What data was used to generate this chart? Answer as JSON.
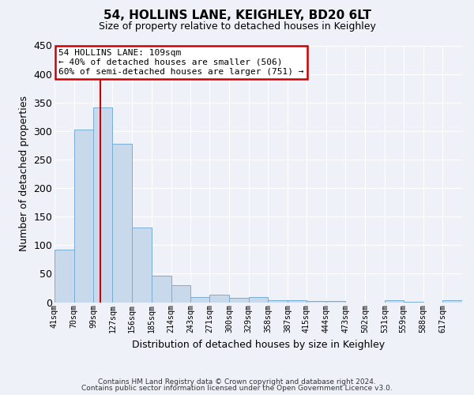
{
  "title": "54, HOLLINS LANE, KEIGHLEY, BD20 6LT",
  "subtitle": "Size of property relative to detached houses in Keighley",
  "xlabel": "Distribution of detached houses by size in Keighley",
  "ylabel": "Number of detached properties",
  "bar_labels": [
    "41sqm",
    "70sqm",
    "99sqm",
    "127sqm",
    "156sqm",
    "185sqm",
    "214sqm",
    "243sqm",
    "271sqm",
    "300sqm",
    "329sqm",
    "358sqm",
    "387sqm",
    "415sqm",
    "444sqm",
    "473sqm",
    "502sqm",
    "531sqm",
    "559sqm",
    "588sqm",
    "617sqm"
  ],
  "bar_values": [
    92,
    303,
    342,
    278,
    131,
    46,
    30,
    9,
    13,
    7,
    9,
    4,
    3,
    2,
    2,
    0,
    0,
    3,
    1,
    0,
    3
  ],
  "bar_color": "#c9d9ec",
  "bar_edge_color": "#7aadd4",
  "bar_edge_width": 0.7,
  "bin_edges": [
    41,
    70,
    99,
    127,
    156,
    185,
    214,
    243,
    271,
    300,
    329,
    358,
    387,
    415,
    444,
    473,
    502,
    531,
    559,
    588,
    617,
    646
  ],
  "ylim": [
    0,
    450
  ],
  "yticks": [
    0,
    50,
    100,
    150,
    200,
    250,
    300,
    350,
    400,
    450
  ],
  "annotation_title": "54 HOLLINS LANE: 109sqm",
  "annotation_line1": "← 40% of detached houses are smaller (506)",
  "annotation_line2": "60% of semi-detached houses are larger (751) →",
  "annotation_box_color": "#ffffff",
  "annotation_border_color": "#cc0000",
  "vline_color": "#cc0000",
  "vline_x": 109,
  "bg_color": "#eef2f8",
  "grid_color": "#ffffff",
  "footer1": "Contains HM Land Registry data © Crown copyright and database right 2024.",
  "footer2": "Contains public sector information licensed under the Open Government Licence v3.0."
}
